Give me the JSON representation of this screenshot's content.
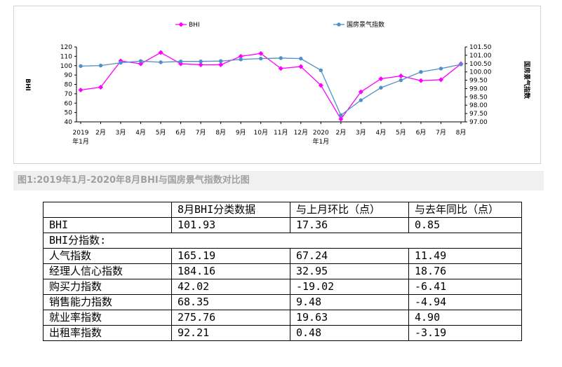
{
  "chart_data": {
    "type": "line",
    "categories": [
      "2019年1月",
      "2月",
      "3月",
      "4月",
      "5月",
      "6月",
      "7月",
      "8月",
      "9月",
      "10月",
      "11月",
      "12月",
      "2020年1月",
      "2月",
      "3月",
      "4月",
      "5月",
      "6月",
      "7月",
      "8月"
    ],
    "series": [
      {
        "name": "BHI",
        "axis": "left",
        "color": "#ff00ff",
        "values": [
          74,
          77,
          105,
          102,
          114,
          102,
          101,
          101,
          110,
          113,
          97,
          99,
          79,
          43,
          72,
          86,
          89,
          84,
          85,
          102
        ]
      },
      {
        "name": "国房景气指数",
        "axis": "right",
        "color": "#4f90c7",
        "values": [
          100.35,
          100.38,
          100.55,
          100.65,
          100.58,
          100.63,
          100.63,
          100.65,
          100.75,
          100.8,
          100.83,
          100.8,
          100.1,
          97.4,
          98.3,
          99.05,
          99.5,
          100.0,
          100.2,
          100.45
        ]
      }
    ],
    "y_left": {
      "label": "BHI",
      "min": 40,
      "max": 120,
      "ticks": [
        "120",
        "110",
        "100",
        "90",
        "80",
        "70",
        "60",
        "50",
        "40"
      ]
    },
    "y_right": {
      "label": "国房景气指数",
      "min": 97.0,
      "max": 101.5,
      "ticks": [
        "101.50",
        "101.00",
        "100.50",
        "100.00",
        "99.50",
        "99.00",
        "98.50",
        "98.00",
        "97.50",
        "97.00"
      ]
    },
    "x_ticks": [
      {
        "top": "2019",
        "bottom": "年1月"
      },
      {
        "top": "2月",
        "bottom": ""
      },
      {
        "top": "3月",
        "bottom": ""
      },
      {
        "top": "4月",
        "bottom": ""
      },
      {
        "top": "5月",
        "bottom": ""
      },
      {
        "top": "6月",
        "bottom": ""
      },
      {
        "top": "7月",
        "bottom": ""
      },
      {
        "top": "8月",
        "bottom": ""
      },
      {
        "top": "9月",
        "bottom": ""
      },
      {
        "top": "10月",
        "bottom": ""
      },
      {
        "top": "11月",
        "bottom": ""
      },
      {
        "top": "12月",
        "bottom": ""
      },
      {
        "top": "2020",
        "bottom": "年1月"
      },
      {
        "top": "2月",
        "bottom": ""
      },
      {
        "top": "3月",
        "bottom": ""
      },
      {
        "top": "4月",
        "bottom": ""
      },
      {
        "top": "5月",
        "bottom": ""
      },
      {
        "top": "6月",
        "bottom": ""
      },
      {
        "top": "7月",
        "bottom": ""
      },
      {
        "top": "8月",
        "bottom": ""
      }
    ],
    "legend": [
      "BHI",
      "国房景气指数"
    ],
    "legend_position": "top",
    "grid": false
  },
  "caption": "图1:2019年1月-2020年8月BHI与国房景气指数对比图",
  "table": {
    "rows": [
      [
        "",
        "8月BHI分类数据",
        "与上月环比（点）",
        "与去年同比（点）"
      ],
      [
        "BHI",
        "101.93",
        "17.36",
        "0.85"
      ],
      [
        "BHI分指数:"
      ],
      [
        "人气指数",
        "165.19",
        "67.24",
        "11.49"
      ],
      [
        "经理人信心指数",
        "184.16",
        "32.95",
        "18.76"
      ],
      [
        "购买力指数",
        "42.02",
        "-19.02",
        "-6.41"
      ],
      [
        "销售能力指数",
        "68.35",
        "9.48",
        "-4.94"
      ],
      [
        "就业率指数",
        "275.76",
        "19.63",
        "4.90"
      ],
      [
        "出租率指数",
        "92.21",
        "0.48",
        "-3.19"
      ]
    ]
  }
}
